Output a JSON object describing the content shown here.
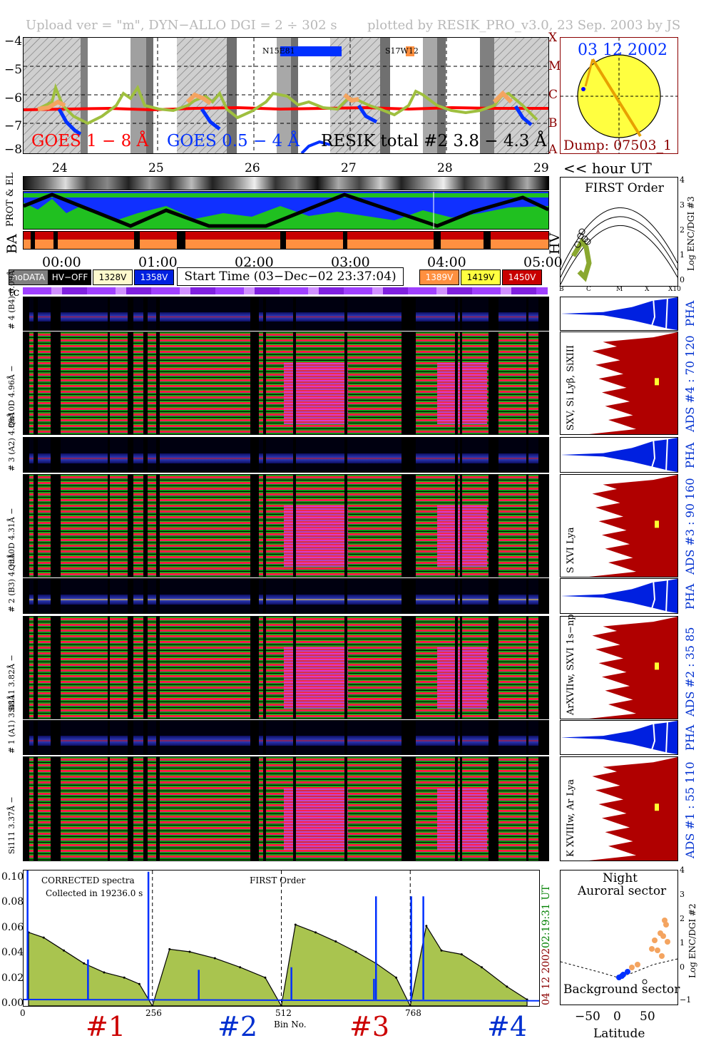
{
  "header": {
    "left": "Upload ver = \"m\", DYN−ALLO DGI =   2 ÷ 302 s",
    "right": "plotted by RESIK_PRO_v3.0, 23 Sep. 2003 by JS"
  },
  "goes_panel": {
    "y_ticks": [
      "−4",
      "−5",
      "−6",
      "−7",
      "−8"
    ],
    "class_labels": [
      "X",
      "M",
      "C",
      "B",
      "A"
    ],
    "goes_long": "GOES 1 − 8 Å",
    "goes_short": "GOES 0.5 − 4 Å",
    "resik": "RESIK total #2  3.8 − 4.3 Å",
    "marker_left": "N15E81",
    "marker_right": "S17W12"
  },
  "sun_panel": {
    "date": "03 12 2002",
    "dump": "Dump: 07503_1"
  },
  "hour_axis": {
    "ticks": [
      "24",
      "25",
      "26",
      "27",
      "28",
      "29"
    ],
    "label": "<< hour UT"
  },
  "orbit_panel": {
    "label_prot": "PROT & EL",
    "label_ba": "BA",
    "label_hv": "HV"
  },
  "time_axis": {
    "ticks": [
      "00:00",
      "01:00",
      "02:00",
      "03:00",
      "04:00",
      "05:00"
    ]
  },
  "legend": {
    "nodata": "noDATA",
    "hvoff": "HV−OFF",
    "l328": "1328V",
    "l358": "1358V",
    "start_time": "Start Time (03−Dec−02 23:37:04)",
    "l389": "1389V",
    "l419": "1419V",
    "l450": "1450V"
  },
  "tc_label": "tc",
  "first_order_panel": {
    "title": "FIRST Order",
    "ylabel": "Log ENC/DGI #3",
    "y_ticks": [
      "4",
      "3",
      "2",
      "1",
      "0"
    ],
    "x_ticks": [
      "B",
      "C",
      "M",
      "X",
      "X10"
    ]
  },
  "channels": [
    {
      "pha_label": "# 4 (B4)  6.09Å",
      "spec_label": "Qu10D 4.96Å −",
      "line_ids": "SXV, Si Lyβ, SiXIII",
      "ads": "ADS #4 :   70 120"
    },
    {
      "pha_label": "# 3 (A2)  4.89Å",
      "spec_label": "Qu10D 4.31Å −",
      "line_ids": "S XVI Lya",
      "ads": "ADS #3 :   90 160"
    },
    {
      "pha_label": "# 2 (B3)  4.33Å",
      "spec_label": "Si111 3.82Å −",
      "line_ids": "ArXVIIw, SXVI 1s−np",
      "ads": "ADS #2 :   35  85"
    },
    {
      "pha_label": "# 1 (A1)  3.88Å",
      "spec_label": "Si111 3.37Å −",
      "line_ids": "K XVIIIw, Ar Lya",
      "ads": "ADS #1 :   55 110"
    }
  ],
  "pha_text": "PHA",
  "spectrum_panel": {
    "y_ticks": [
      "0.10",
      "0.08",
      "0.06",
      "0.04",
      "0.02",
      "0.00"
    ],
    "x_ticks": [
      "0",
      "256",
      "512",
      "768"
    ],
    "corrected": "CORRECTED spectra",
    "collected": "Collected in 19236.0 s",
    "first_order": "FIRST Order",
    "x_label": "Bin No.",
    "side_time": "02:19:31 UT",
    "side_date": "04 12 2002",
    "channel_numbers": [
      "#1",
      "#2",
      "#3",
      "#4"
    ]
  },
  "latitude_panel": {
    "night": "Night",
    "auroral": "Auroral sector",
    "background": "Background sector",
    "x_ticks": [
      "−50",
      "0",
      "50"
    ],
    "x_label": "Latitude",
    "y_ticks": [
      "4",
      "3",
      "2",
      "1",
      "0",
      "−1"
    ],
    "ylabel": "Log ENC/DGI #2"
  },
  "colors": {
    "goes_long": "#ff0000",
    "goes_short": "#0030ff",
    "resik": "#9fbf3f",
    "sun": "#ffff40",
    "dump": "#8b0000",
    "ads_fill": "#b00000",
    "pha_fill": "#0020e0",
    "spectrum_fill": "#a9c44f",
    "num_red": "#cc0000",
    "num_blue": "#0030d0"
  },
  "chart_data": {
    "type": "line",
    "title": "CORRECTED spectra",
    "xlabel": "Bin No.",
    "ylabel": "",
    "xlim": [
      0,
      1024
    ],
    "ylim": [
      0,
      0.105
    ],
    "series": [
      {
        "name": "CORRECTED spectra",
        "x": [
          10,
          40,
          80,
          120,
          160,
          200,
          230,
          256,
          290,
          330,
          380,
          430,
          480,
          512,
          540,
          580,
          620,
          660,
          700,
          740,
          768,
          800,
          830,
          870,
          910,
          960,
          1000
        ],
        "values": [
          0.057,
          0.053,
          0.043,
          0.033,
          0.026,
          0.022,
          0.017,
          0.0,
          0.044,
          0.042,
          0.037,
          0.03,
          0.022,
          0.0,
          0.063,
          0.057,
          0.05,
          0.042,
          0.033,
          0.022,
          0.0,
          0.062,
          0.043,
          0.04,
          0.03,
          0.015,
          0.005
        ]
      }
    ]
  }
}
